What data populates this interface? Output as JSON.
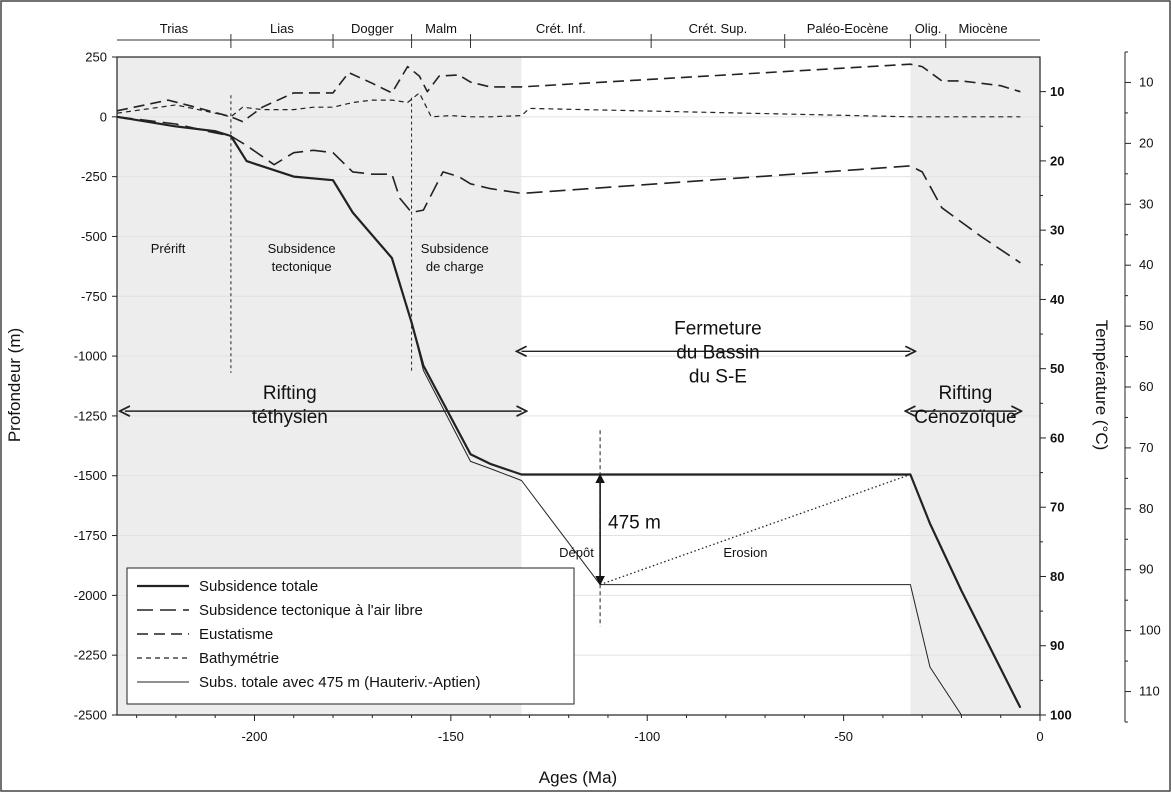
{
  "chart_data": {
    "type": "line",
    "xlabel": "Ages (Ma)",
    "ylabel": "Profondeur (m)",
    "y2label": "Température (°C)",
    "xlim": [
      -235,
      0
    ],
    "ylim": [
      -2500,
      250
    ],
    "x_ticks": [
      -200,
      -150,
      -100,
      -50,
      0
    ],
    "y_ticks": [
      250,
      0,
      -250,
      -500,
      -750,
      -1000,
      -1250,
      -1500,
      -1750,
      -2000,
      -2250,
      -2500
    ],
    "temp_inner_ticks": [
      10,
      20,
      30,
      40,
      50,
      60,
      70,
      80,
      90,
      100
    ],
    "temp_outer_ticks": [
      10,
      20,
      30,
      40,
      50,
      60,
      70,
      80,
      90,
      100,
      110
    ],
    "periods": [
      {
        "label": "Trias",
        "start": -235,
        "end": -206
      },
      {
        "label": "Lias",
        "start": -206,
        "end": -180
      },
      {
        "label": "Dogger",
        "start": -180,
        "end": -160
      },
      {
        "label": "Malm",
        "start": -160,
        "end": -145
      },
      {
        "label": "Crét. Inf.",
        "start": -145,
        "end": -99
      },
      {
        "label": "Crét. Sup.",
        "start": -99,
        "end": -65
      },
      {
        "label": "Paléo-Eocène",
        "start": -65,
        "end": -33
      },
      {
        "label": "Olig.",
        "start": -33,
        "end": -24
      },
      {
        "label": "Miocène",
        "start": -24,
        "end": -5
      }
    ],
    "shaded_intervals": [
      [
        -235,
        -132
      ],
      [
        -33,
        0
      ]
    ],
    "phase_labels": [
      {
        "lines": [
          "Prérift"
        ],
        "x": -222,
        "y": -570
      },
      {
        "lines": [
          "Subsidence",
          "tectonique"
        ],
        "x": -188,
        "y": -570
      },
      {
        "lines": [
          "Subsidence",
          "de charge"
        ],
        "x": -149,
        "y": -570
      }
    ],
    "phase_lines": [
      {
        "x": -206,
        "y_top": 90,
        "y_bottom": -1070
      },
      {
        "x": -160,
        "y_top": 80,
        "y_bottom": -1070
      }
    ],
    "annotations": [
      {
        "type": "arrow",
        "x1": -233,
        "x2": -132,
        "y": -1230,
        "lines": [
          "Rifting",
          "téthysien"
        ],
        "text_x": -191,
        "text_y": -1180
      },
      {
        "type": "arrow",
        "x1": -132,
        "x2": -33,
        "y": -980,
        "lines": [
          "Fermeture",
          "du Bassin",
          "du S-E"
        ],
        "text_x": -82,
        "text_y": -910
      },
      {
        "type": "arrow",
        "x1": -33,
        "x2": -6,
        "y": -1230,
        "lines": [
          "Rifting",
          "Cénozoïque"
        ],
        "text_x": -19,
        "text_y": -1180
      },
      {
        "type": "vertical-arrow",
        "x": -112,
        "y1": -1495,
        "y2": -1955,
        "label": "475 m",
        "label_x": -111,
        "label_y": -1720
      },
      {
        "type": "text",
        "text": "Dépôt",
        "x": -118,
        "y": -1840
      },
      {
        "type": "text",
        "text": "Erosion",
        "x": -75,
        "y": -1840
      },
      {
        "type": "dashed-vline",
        "x": -112,
        "y_top": -1310,
        "y_bottom": -2130
      }
    ],
    "series": [
      {
        "name": "Subsidence totale",
        "style": "solid-thick",
        "x": [
          -235,
          -220,
          -210,
          -206,
          -202,
          -190,
          -180,
          -175,
          -165,
          -160,
          -157,
          -145,
          -140,
          -132,
          -33,
          -28,
          -20,
          -5
        ],
        "y": [
          0,
          -40,
          -60,
          -80,
          -185,
          -250,
          -265,
          -400,
          -590,
          -860,
          -1040,
          -1410,
          -1450,
          -1495,
          -1495,
          -1700,
          -1980,
          -2470
        ]
      },
      {
        "name": "Subsidence tectonique à l'air libre",
        "style": "dash-long",
        "x": [
          -235,
          -220,
          -212,
          -206,
          -202,
          -195,
          -190,
          -185,
          -180,
          -175,
          -170,
          -165,
          -163,
          -160,
          -157,
          -152,
          -148,
          -145,
          -140,
          -132,
          -33,
          -30,
          -25,
          -15,
          -5
        ],
        "y": [
          0,
          -30,
          -60,
          -80,
          -120,
          -200,
          -150,
          -140,
          -150,
          -230,
          -240,
          -240,
          -340,
          -400,
          -390,
          -230,
          -250,
          -280,
          -300,
          -320,
          -205,
          -230,
          -380,
          -500,
          -610
        ]
      },
      {
        "name": "Eustatisme",
        "style": "dash-medium",
        "x": [
          -235,
          -222,
          -215,
          -206,
          -203,
          -198,
          -190,
          -185,
          -180,
          -176,
          -170,
          -165,
          -161,
          -158,
          -156,
          -153,
          -148,
          -145,
          -140,
          -132,
          -33,
          -30,
          -25,
          -20,
          -15,
          -10,
          -5
        ],
        "y": [
          25,
          70,
          40,
          0,
          -20,
          40,
          100,
          100,
          100,
          185,
          140,
          100,
          210,
          170,
          105,
          170,
          175,
          145,
          125,
          125,
          220,
          210,
          150,
          150,
          140,
          130,
          105
        ]
      },
      {
        "name": "Bathymétrie",
        "style": "dash-short",
        "x": [
          -235,
          -220,
          -210,
          -206,
          -203,
          -198,
          -190,
          -185,
          -180,
          -175,
          -170,
          -165,
          -161,
          -158,
          -155,
          -150,
          -145,
          -140,
          -132,
          -130,
          -33,
          -25,
          -15,
          -5
        ],
        "y": [
          15,
          50,
          15,
          0,
          40,
          30,
          30,
          40,
          40,
          60,
          70,
          70,
          60,
          100,
          0,
          5,
          0,
          0,
          5,
          35,
          0,
          0,
          0,
          0
        ]
      },
      {
        "name": "Subs. totale avec 475 m (Hauteriv.-Aptien)",
        "style": "solid-thin",
        "x": [
          -235,
          -220,
          -210,
          -206,
          -202,
          -190,
          -180,
          -175,
          -165,
          -160,
          -157,
          -145,
          -140,
          -132,
          -112,
          -33,
          -28,
          -20
        ],
        "y": [
          0,
          -40,
          -60,
          -80,
          -185,
          -250,
          -265,
          -400,
          -590,
          -860,
          -1060,
          -1440,
          -1470,
          -1520,
          -1955,
          -1955,
          -2300,
          -2500
        ]
      }
    ],
    "extra_lines": [
      {
        "style": "dotted",
        "x": [
          -112,
          -33
        ],
        "y": [
          -1955,
          -1495
        ]
      }
    ],
    "legend_position": "bottom-left"
  }
}
